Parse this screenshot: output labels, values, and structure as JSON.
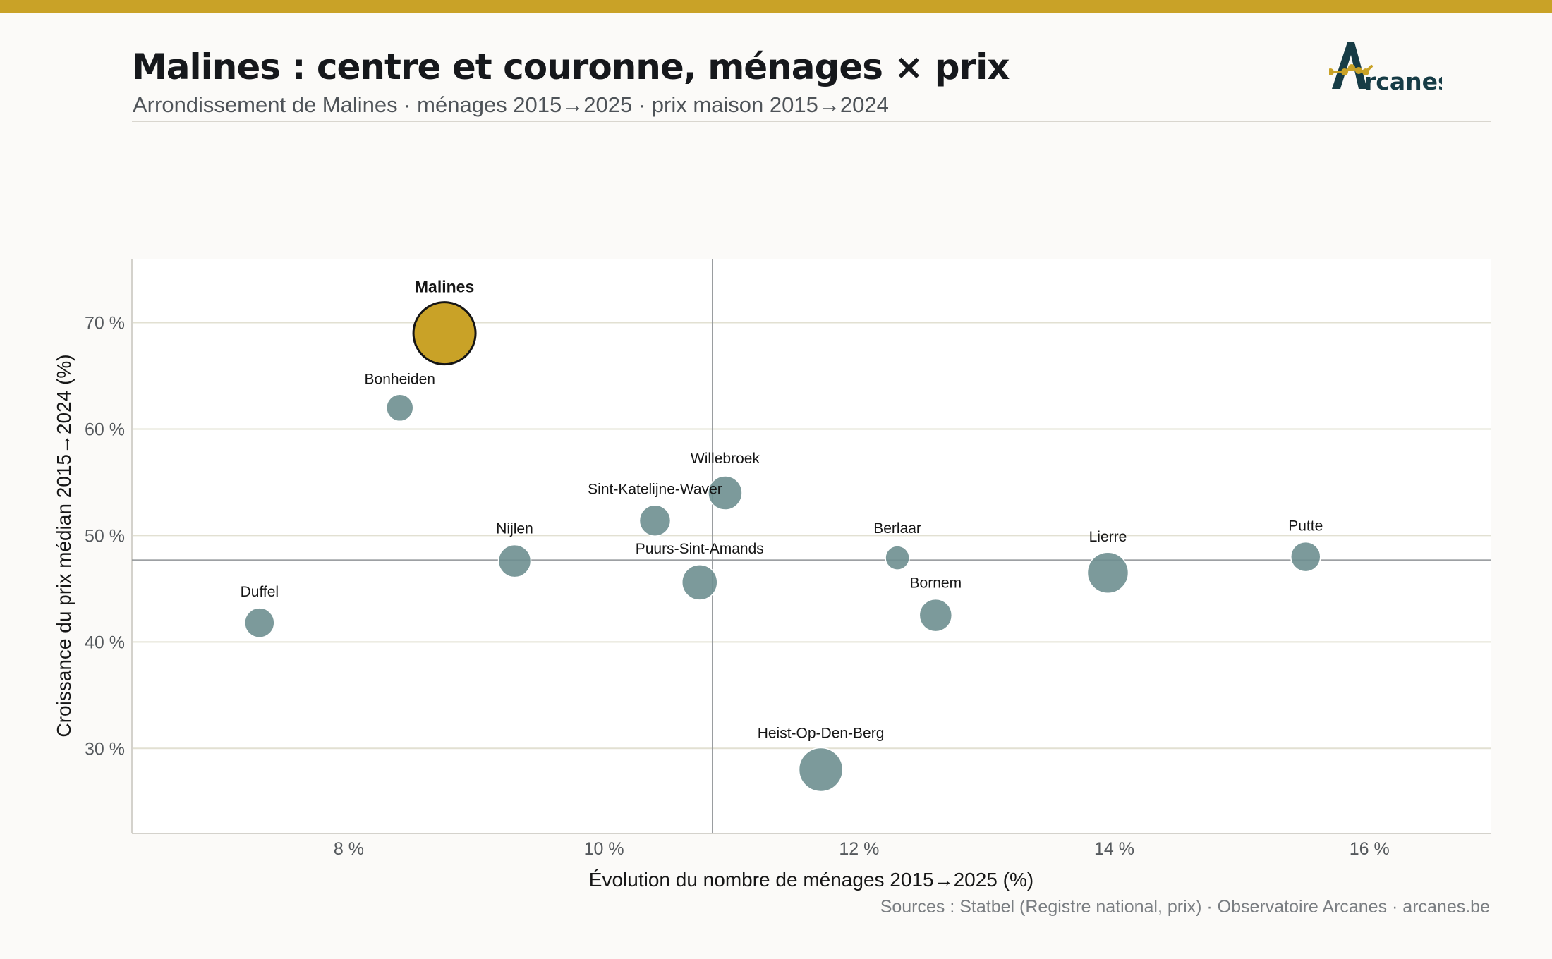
{
  "header": {
    "title": "Malines : centre et couronne, ménages × prix",
    "subtitle": "Arrondissement de Malines · ménages 2015→2025 · prix maison 2015→2024"
  },
  "logo": {
    "text": "rcanes",
    "icon": "arcanes-a-logo-icon"
  },
  "footer": {
    "source": "Sources : Statbel (Registre national, prix) · Observatoire Arcanes · arcanes.be"
  },
  "colors": {
    "top_bar": "#c9a227",
    "accent": "#c9a227",
    "bubble": "#6e8f90",
    "logo_dark": "#173c46",
    "grid": "#e2e0d2",
    "median_line": "#8f9396"
  },
  "chart_data": {
    "type": "scatter",
    "xlabel": "Évolution du nombre de ménages 2015→2025 (%)",
    "ylabel": "Croissance du prix médian 2015→2024 (%)",
    "x_ticks": [
      "8 %",
      "10 %",
      "12 %",
      "14 %",
      "16 %"
    ],
    "y_ticks": [
      "30 %",
      "40 %",
      "50 %",
      "60 %",
      "70 %"
    ],
    "xlim": [
      6.3,
      16.95
    ],
    "ylim": [
      22,
      76
    ],
    "grid": "horizontal",
    "reference_lines": {
      "x": 10.85,
      "y": 47.7
    },
    "points": [
      {
        "name": "Malines",
        "x": 8.75,
        "y": 69,
        "highlight": true
      },
      {
        "name": "Bonheiden",
        "x": 8.4,
        "y": 62
      },
      {
        "name": "Willebroek",
        "x": 10.95,
        "y": 54
      },
      {
        "name": "Sint-Katelijne-Waver",
        "x": 10.4,
        "y": 51.4
      },
      {
        "name": "Nijlen",
        "x": 9.3,
        "y": 47.6
      },
      {
        "name": "Puurs-Sint-Amands",
        "x": 10.75,
        "y": 45.6
      },
      {
        "name": "Duffel",
        "x": 7.3,
        "y": 41.8
      },
      {
        "name": "Berlaar",
        "x": 12.3,
        "y": 47.9
      },
      {
        "name": "Bornem",
        "x": 12.6,
        "y": 42.5
      },
      {
        "name": "Lierre",
        "x": 13.95,
        "y": 46.5
      },
      {
        "name": "Putte",
        "x": 15.5,
        "y": 48
      },
      {
        "name": "Heist-Op-Den-Berg",
        "x": 11.7,
        "y": 28
      }
    ]
  }
}
